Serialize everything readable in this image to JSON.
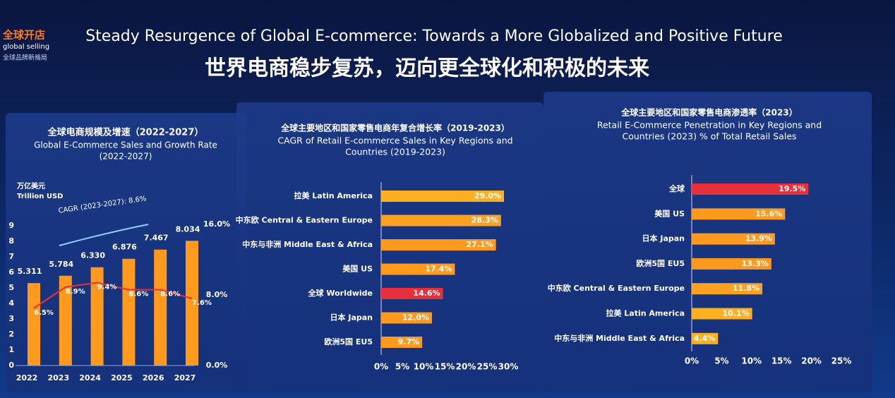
{
  "header": {
    "logo_cn": "全球开店",
    "logo_en": "global selling",
    "logo_tag": "全球品牌新格局",
    "title_en": "Steady Resurgence of Global E-commerce: Towards a More Globalized and Positive Future",
    "title_zh": "世界电商稳步复苏，迈向更全球化和积极的未来"
  },
  "chart_data": [
    {
      "type": "combo",
      "title": "全球电商规模及增速（2022-2027）",
      "subtitle": [
        "Global E-Commerce Sales and Growth Rate",
        "(2022-2027)"
      ],
      "ylabel": "万亿美元",
      "ylabel_en": "Trillion USD",
      "annotation": "CAGR (2023-2027): 8.6%",
      "categories": [
        "2022",
        "2023",
        "2024",
        "2025",
        "2026",
        "2027"
      ],
      "series": [
        {
          "type": "bar",
          "color": "#ff9a1f",
          "values": [
            5.311,
            5.784,
            6.33,
            6.876,
            7.467,
            8.034
          ],
          "value_labels": [
            "5.311",
            "5.784",
            "6.330",
            "6.876",
            "7.467",
            "8.034"
          ]
        },
        {
          "type": "line",
          "axis": "y2",
          "color": "#e8303a",
          "values": [
            6.5,
            8.9,
            9.4,
            8.6,
            8.6,
            7.6
          ],
          "value_labels": [
            "6.5%",
            "8.9%",
            "9.4%",
            "8.6%",
            "8.6%",
            "7.6%"
          ]
        }
      ],
      "ylim": [
        0,
        10
      ],
      "yticks": [
        0,
        1,
        2,
        3,
        4,
        5,
        6,
        7,
        8,
        9
      ],
      "y2lim": [
        0,
        17.6
      ],
      "y2ticks": [
        {
          "value": 0,
          "label": "0.0%"
        },
        {
          "value": 8,
          "label": "8.0%"
        },
        {
          "value": 16,
          "label": "16.0%"
        }
      ]
    },
    {
      "type": "hbar",
      "title": "全球主要地区和国家零售电商年复合增长率（2019-2023）",
      "subtitle": [
        "CAGR of Retail E-commerce Sales in Key Regions and",
        "Countries (2019-2023)"
      ],
      "categories": [
        "拉美 Latin America",
        "中东欧 Central & Eastern Europe",
        "中东与非洲 Middle East & Africa",
        "美国 US",
        "全球 Worldwide",
        "日本 Japan",
        "欧洲5国 EU5"
      ],
      "values": [
        29.0,
        28.3,
        27.1,
        17.4,
        14.6,
        12.0,
        9.7
      ],
      "value_labels": [
        "29.0%",
        "28.3%",
        "27.1%",
        "17.4%",
        "14.6%",
        "12.0%",
        "9.7%"
      ],
      "colors": [
        "#ffb020",
        "#ffa020",
        "#ff9a1f",
        "#ff9a1f",
        "#e8303a",
        "#ff9a1f",
        "#ff9a1f"
      ],
      "xlim": [
        0,
        30
      ],
      "xticks": [
        {
          "value": 0,
          "label": "0%"
        },
        {
          "value": 5,
          "label": "5%"
        },
        {
          "value": 10,
          "label": "10%"
        },
        {
          "value": 15,
          "label": "15%"
        },
        {
          "value": 20,
          "label": "20%"
        },
        {
          "value": 25,
          "label": "25%"
        },
        {
          "value": 30,
          "label": "30%"
        }
      ]
    },
    {
      "type": "hbar",
      "title": "全球主要地区和国家零售电商渗透率（2023）",
      "subtitle": [
        "Retail E-Commerce Penetration in Key Regions and",
        "Countries (2023) % of Total Retail Sales"
      ],
      "categories": [
        "全球",
        "美国 US",
        "日本 Japan",
        "欧洲5国 EU5",
        "中东欧 Central & Eastern Europe",
        "拉美 Latin America",
        "中东与非洲 Middle East & Africa"
      ],
      "values": [
        19.5,
        15.6,
        13.9,
        13.3,
        11.8,
        10.1,
        4.4
      ],
      "value_labels": [
        "19.5%",
        "15.6%",
        "13.9%",
        "13.3%",
        "11.8%",
        "10.1%",
        "4.4%"
      ],
      "colors": [
        "#e8303a",
        "#ff9a1f",
        "#ff9a1f",
        "#ff9a1f",
        "#ffa020",
        "#ffb020",
        "#ffb020"
      ],
      "xlim": [
        0,
        25
      ],
      "xticks": [
        {
          "value": 0,
          "label": "0%"
        },
        {
          "value": 5,
          "label": "5%"
        },
        {
          "value": 10,
          "label": "10%"
        },
        {
          "value": 15,
          "label": "15%"
        },
        {
          "value": 20,
          "label": "20%"
        },
        {
          "value": 25,
          "label": "25%"
        }
      ]
    }
  ]
}
